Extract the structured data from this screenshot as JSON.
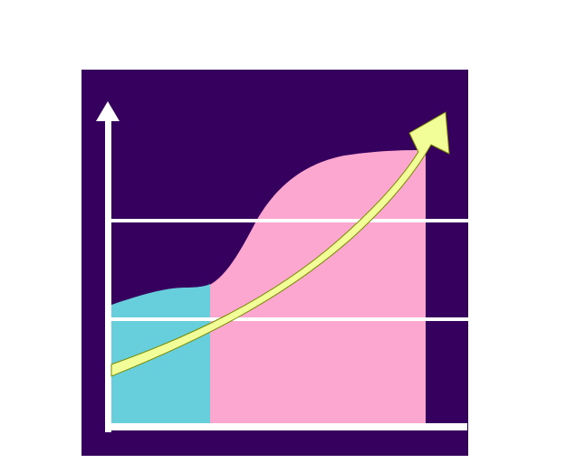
{
  "illustration": {
    "subject": "growth-chart-graphic",
    "colors": {
      "page_background": "#ffffff",
      "panel_background": "#36005e",
      "axis": "#ffffff",
      "gridline": "#ffffff",
      "cyan_area": "#67cfdb",
      "pink_area": "#fba7cf",
      "trend_arrow": "#f2ff99",
      "trend_arrow_outline": "#7a8a00"
    },
    "icons": {
      "y_axis_arrowhead": "arrow-up-icon",
      "trend_arrowhead": "arrow-up-right-icon"
    }
  }
}
